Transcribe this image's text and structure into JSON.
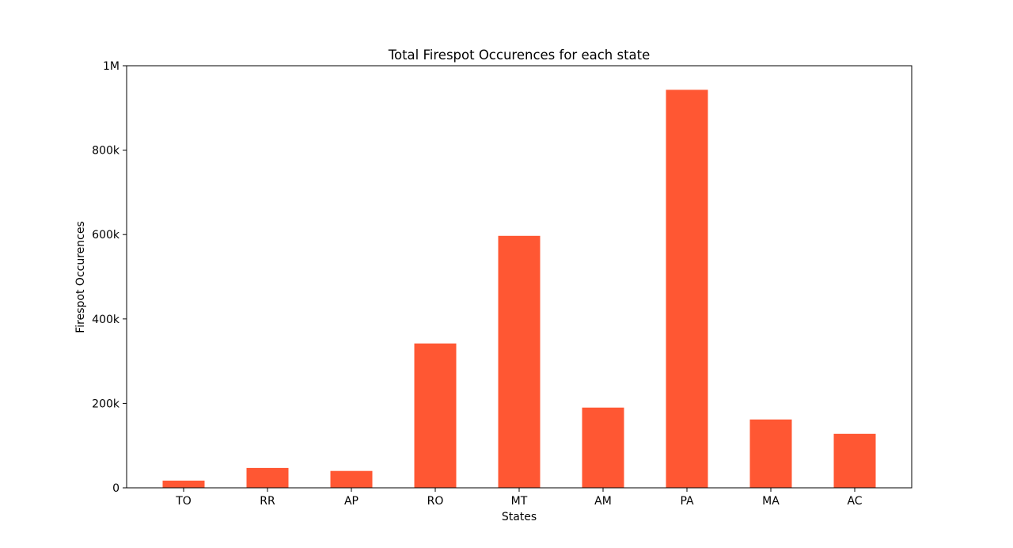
{
  "chart_data": {
    "type": "bar",
    "title": "Total Firespot Occurences for each state",
    "xlabel": "States",
    "ylabel": "Firespot Occurences",
    "categories": [
      "TO",
      "RR",
      "AP",
      "RO",
      "MT",
      "AM",
      "PA",
      "MA",
      "AC"
    ],
    "values": [
      17000,
      47000,
      40000,
      342000,
      597000,
      190000,
      943000,
      162000,
      128000
    ],
    "ylim": [
      0,
      1000000
    ],
    "yticks": [
      0,
      200000,
      400000,
      600000,
      800000,
      1000000
    ],
    "ytick_labels": [
      "0",
      "200k",
      "400k",
      "600k",
      "800k",
      "1M"
    ],
    "bar_color": "#ff5733",
    "grid": false,
    "legend": false
  }
}
